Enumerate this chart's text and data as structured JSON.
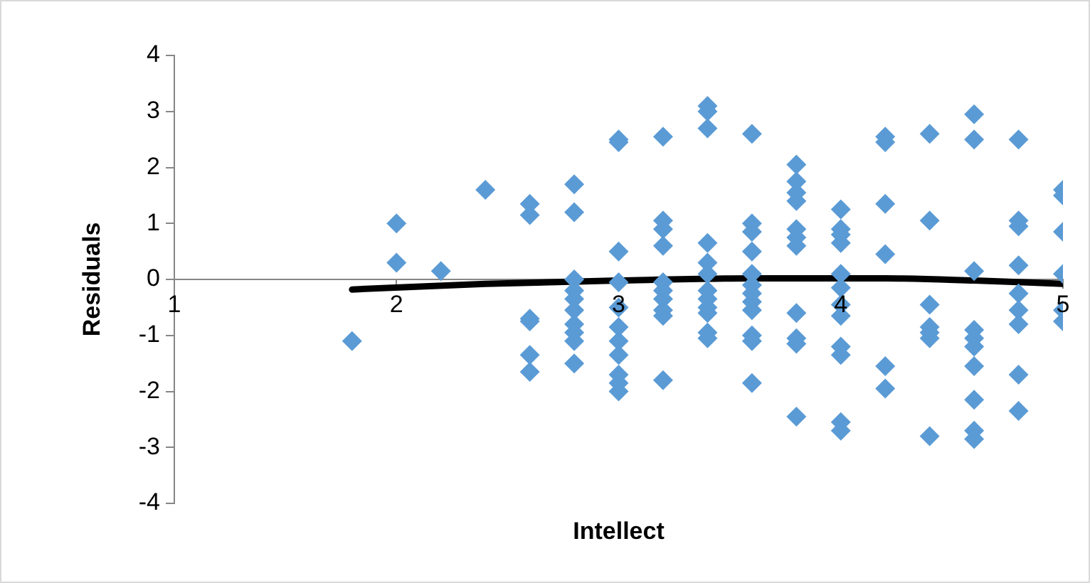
{
  "chart_data": {
    "type": "scatter",
    "xlabel": "Intellect",
    "ylabel": "Residuals",
    "xlim": [
      1,
      5
    ],
    "xticks": [
      1,
      2,
      3,
      4,
      5
    ],
    "ylim": [
      -4,
      4
    ],
    "yticks": [
      -4,
      -3,
      -2,
      -1,
      0,
      1,
      2,
      3,
      4
    ],
    "legend": false,
    "series": [
      {
        "type": "scatter",
        "color": "#5b9bd5",
        "marker": "diamond",
        "x": [
          1.8,
          2.0,
          2.0,
          2.2,
          2.4,
          2.6,
          2.6,
          2.6,
          2.6,
          2.6,
          2.6,
          2.8,
          2.8,
          2.8,
          2.8,
          2.8,
          2.8,
          2.8,
          2.8,
          2.8,
          2.8,
          3.0,
          3.0,
          3.0,
          3.0,
          3.0,
          3.0,
          3.0,
          3.0,
          3.0,
          3.0,
          3.0,
          3.2,
          3.2,
          3.2,
          3.2,
          3.2,
          3.2,
          3.2,
          3.2,
          3.2,
          3.2,
          3.4,
          3.4,
          3.4,
          3.4,
          3.4,
          3.4,
          3.4,
          3.4,
          3.4,
          3.4,
          3.4,
          3.4,
          3.6,
          3.6,
          3.6,
          3.6,
          3.6,
          3.6,
          3.6,
          3.6,
          3.6,
          3.6,
          3.6,
          3.6,
          3.8,
          3.8,
          3.8,
          3.8,
          3.8,
          3.8,
          3.8,
          3.8,
          3.8,
          3.8,
          3.8,
          4.0,
          4.0,
          4.0,
          4.0,
          4.0,
          4.0,
          4.0,
          4.0,
          4.0,
          4.0,
          4.0,
          4.0,
          4.2,
          4.2,
          4.2,
          4.2,
          4.2,
          4.2,
          4.4,
          4.4,
          4.4,
          4.4,
          4.4,
          4.4,
          4.4,
          4.6,
          4.6,
          4.6,
          4.6,
          4.6,
          4.6,
          4.6,
          4.6,
          4.6,
          4.6,
          4.8,
          4.8,
          4.8,
          4.8,
          4.8,
          4.8,
          4.8,
          4.8,
          4.8,
          5.0,
          5.0,
          5.0,
          5.0,
          5.0,
          5.0
        ],
        "values": [
          -1.1,
          1.0,
          0.3,
          0.15,
          1.6,
          1.35,
          1.15,
          -0.7,
          -0.75,
          -1.35,
          -1.65,
          1.7,
          1.2,
          0.0,
          -0.2,
          -0.35,
          -0.55,
          -0.8,
          -0.95,
          -1.1,
          -1.5,
          2.5,
          2.45,
          0.5,
          -0.05,
          -0.5,
          -0.85,
          -1.1,
          -1.35,
          -1.7,
          -1.85,
          -2.0,
          2.55,
          1.05,
          0.9,
          0.6,
          -0.05,
          -0.2,
          -0.35,
          -0.55,
          -0.65,
          -1.8,
          3.1,
          3.0,
          2.7,
          0.65,
          0.3,
          0.1,
          -0.2,
          -0.35,
          -0.5,
          -0.6,
          -0.95,
          -1.05,
          2.6,
          1.0,
          0.85,
          0.5,
          0.1,
          -0.1,
          -0.25,
          -0.4,
          -0.55,
          -1.0,
          -1.1,
          -1.85,
          2.05,
          1.75,
          1.55,
          1.4,
          0.9,
          0.75,
          0.6,
          -0.6,
          -1.05,
          -1.15,
          -2.45,
          1.25,
          0.9,
          0.8,
          0.65,
          0.1,
          -0.15,
          -0.45,
          -0.65,
          -1.2,
          -1.35,
          -2.55,
          -2.7,
          2.55,
          2.45,
          1.35,
          0.45,
          -1.55,
          -1.95,
          2.6,
          1.05,
          -0.45,
          -0.85,
          -0.95,
          -1.05,
          -2.8,
          2.95,
          2.5,
          0.15,
          -0.9,
          -1.05,
          -1.2,
          -1.55,
          -2.15,
          -2.7,
          -2.85,
          2.5,
          1.05,
          0.95,
          0.25,
          -0.25,
          -0.55,
          -0.8,
          -1.7,
          -2.35,
          1.6,
          1.5,
          0.85,
          0.1,
          -0.55,
          -0.75
        ]
      },
      {
        "type": "line",
        "color": "#000000",
        "marker": "none",
        "x": [
          1.8,
          2.4,
          3.0,
          3.6,
          4.2,
          4.6,
          5.0
        ],
        "values": [
          -0.18,
          -0.08,
          -0.02,
          0.02,
          0.02,
          -0.02,
          -0.08
        ]
      }
    ]
  }
}
